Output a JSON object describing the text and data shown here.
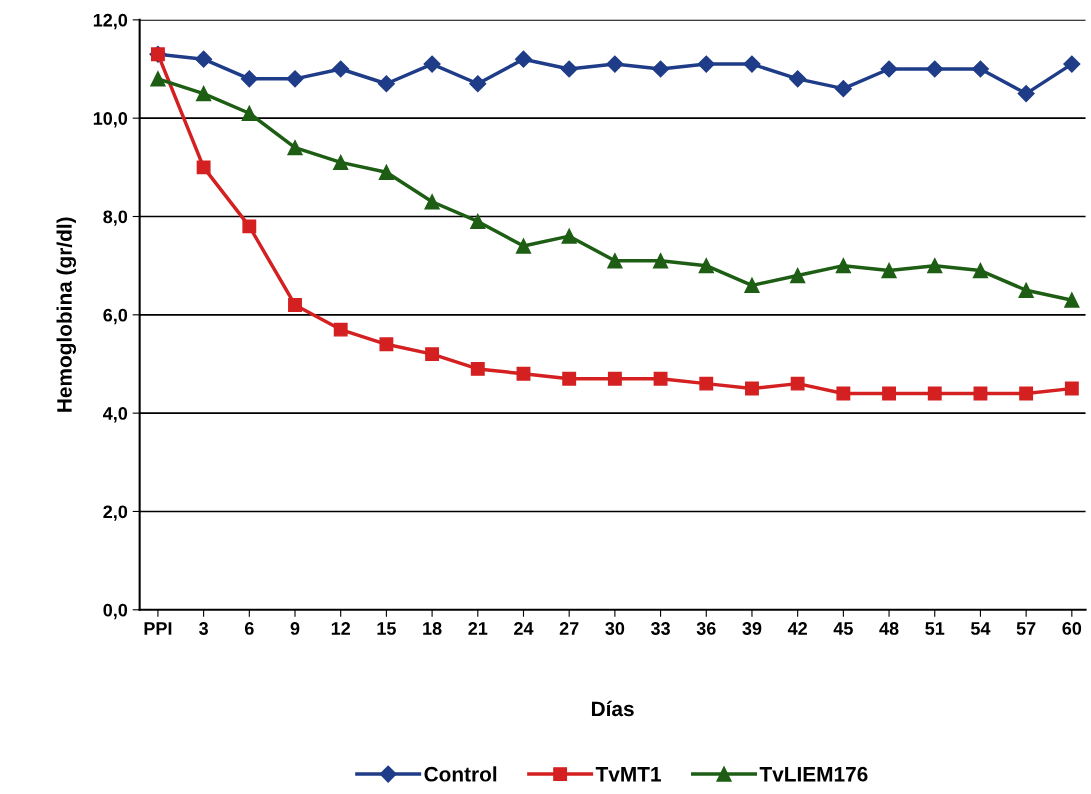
{
  "chart_data": {
    "type": "line",
    "xlabel": "Días",
    "ylabel": "Hemoglobina (gr/dl)",
    "categories": [
      "PPI",
      "3",
      "6",
      "9",
      "12",
      "15",
      "18",
      "21",
      "24",
      "27",
      "30",
      "33",
      "36",
      "39",
      "42",
      "45",
      "48",
      "51",
      "54",
      "57",
      "60"
    ],
    "series": [
      {
        "name": "Control",
        "color": "#1f3c88",
        "marker": "diamond",
        "values": [
          11.3,
          11.2,
          10.8,
          10.8,
          11.0,
          10.7,
          11.1,
          10.7,
          11.2,
          11.0,
          11.1,
          11.0,
          11.1,
          11.1,
          10.8,
          10.6,
          11.0,
          11.0,
          11.0,
          10.5,
          11.1
        ]
      },
      {
        "name": "TvMT1",
        "color": "#d42020",
        "marker": "square",
        "values": [
          11.3,
          9.0,
          7.8,
          6.2,
          5.7,
          5.4,
          5.2,
          4.9,
          4.8,
          4.7,
          4.7,
          4.7,
          4.6,
          4.5,
          4.6,
          4.4,
          4.4,
          4.4,
          4.4,
          4.4,
          4.5
        ]
      },
      {
        "name": "TvLIEM176",
        "color": "#1e5e14",
        "marker": "triangle",
        "values": [
          10.8,
          10.5,
          10.1,
          9.4,
          9.1,
          8.9,
          8.3,
          7.9,
          7.4,
          7.6,
          7.1,
          7.1,
          7.0,
          6.6,
          6.8,
          7.0,
          6.9,
          7.0,
          6.9,
          6.5,
          6.3
        ]
      }
    ],
    "ylim": [
      0,
      12
    ],
    "yticks": [
      {
        "value": 0,
        "label": "0,0"
      },
      {
        "value": 2,
        "label": "2,0"
      },
      {
        "value": 4,
        "label": "4,0"
      },
      {
        "value": 6,
        "label": "6,0"
      },
      {
        "value": 8,
        "label": "8,0"
      },
      {
        "value": 10,
        "label": "10,0"
      },
      {
        "value": 12,
        "label": "12,0"
      }
    ],
    "grid": "y",
    "legend": "bottom",
    "line_style": "solid"
  }
}
